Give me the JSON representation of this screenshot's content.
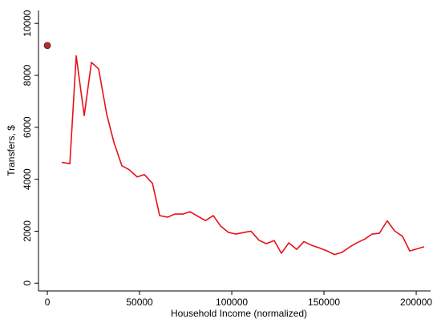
{
  "chart_data": {
    "type": "line",
    "xlabel": "Household Income (normalized)",
    "ylabel": "Transfers, $",
    "xlim": [
      -4800,
      207800
    ],
    "ylim": [
      -300,
      10500
    ],
    "xticks": [
      0,
      50000,
      100000,
      150000,
      200000
    ],
    "yticks": [
      0,
      2000,
      4000,
      6000,
      8000,
      10000
    ],
    "series": [
      {
        "type": "line",
        "color": "#e8101a",
        "x": [
          7800,
          12200,
          15650,
          20000,
          23900,
          27800,
          32200,
          36100,
          40400,
          44300,
          48700,
          52600,
          57000,
          60900,
          65200,
          69100,
          73500,
          77400,
          81700,
          85700,
          90000,
          93900,
          98300,
          102200,
          106500,
          110400,
          114800,
          118700,
          123000,
          126900,
          130900,
          135200,
          139100,
          143500,
          147400,
          151700,
          155700,
          159600,
          163900,
          167800,
          172200,
          176100,
          180000,
          184300,
          188300,
          192600,
          196500,
          204300
        ],
        "values": [
          4650,
          4600,
          8750,
          6450,
          8500,
          8250,
          6500,
          5420,
          4520,
          4370,
          4090,
          4180,
          3840,
          2600,
          2540,
          2660,
          2660,
          2750,
          2570,
          2410,
          2600,
          2200,
          1950,
          1890,
          1950,
          2000,
          1650,
          1520,
          1640,
          1150,
          1550,
          1300,
          1600,
          1450,
          1360,
          1240,
          1100,
          1180,
          1390,
          1550,
          1700,
          1890,
          1920,
          2400,
          2010,
          1800,
          1240,
          1400
        ]
      },
      {
        "type": "scatter",
        "color": "#a8322e",
        "x": [
          0
        ],
        "values": [
          9150
        ]
      }
    ]
  }
}
